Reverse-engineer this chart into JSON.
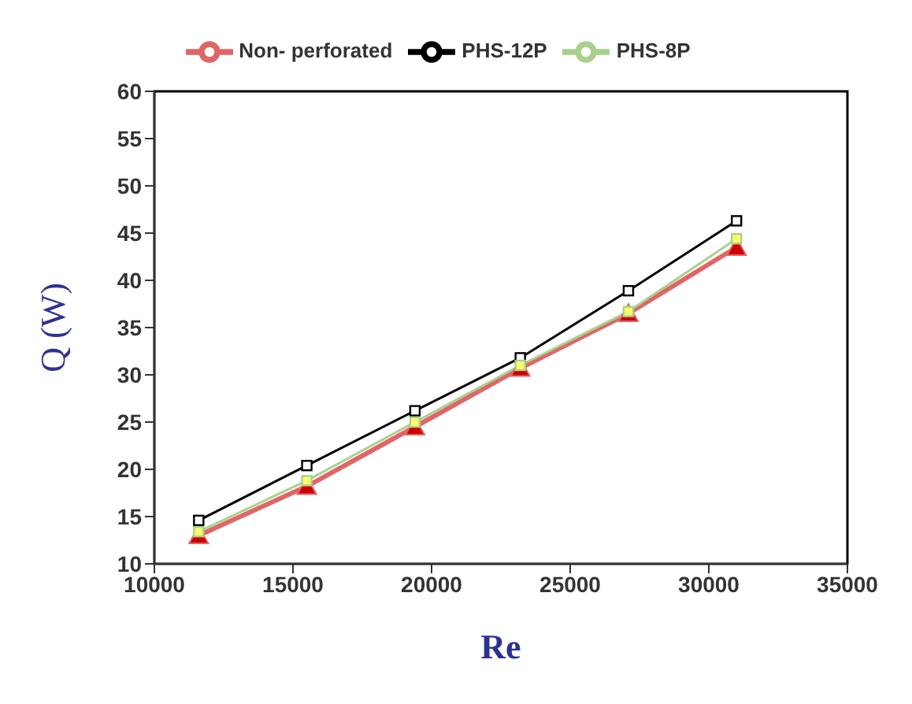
{
  "chart_data": {
    "type": "line",
    "xlabel": "Re",
    "ylabel": "Q (W)",
    "xlim": [
      10000,
      35000
    ],
    "xticks": [
      10000,
      15000,
      20000,
      25000,
      30000,
      35000
    ],
    "ylim": [
      10,
      60
    ],
    "yticks": [
      10,
      15,
      20,
      25,
      30,
      35,
      40,
      45,
      50,
      55,
      60
    ],
    "grid": false,
    "legend": "top",
    "x": [
      11600,
      15500,
      19400,
      23200,
      27100,
      31000
    ],
    "series": [
      {
        "name": "Non- perforated",
        "color": "#e06666",
        "marker": "triangle",
        "values": [
          13.0,
          18.2,
          24.5,
          30.7,
          36.5,
          43.5
        ]
      },
      {
        "name": "PHS-12P",
        "color": "#000000",
        "marker": "square",
        "values": [
          14.6,
          20.4,
          26.2,
          31.8,
          38.9,
          46.3
        ]
      },
      {
        "name": "PHS-8P",
        "color": "#a9d18e",
        "marker": "square",
        "values": [
          13.4,
          18.8,
          25.0,
          31.0,
          36.7,
          44.4
        ]
      }
    ]
  }
}
